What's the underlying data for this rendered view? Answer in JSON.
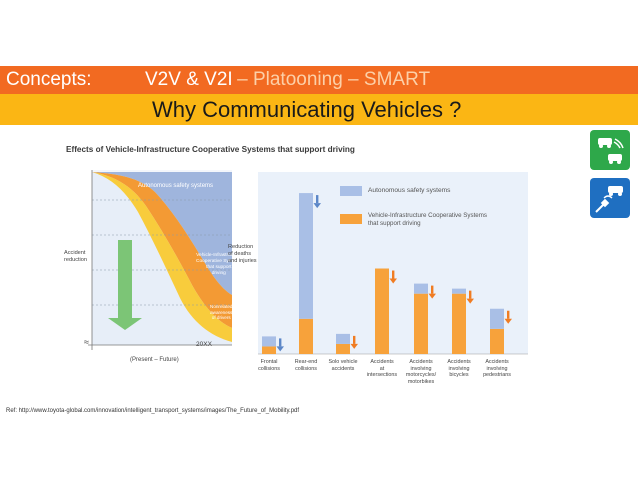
{
  "header": {
    "title_prefix": "Concepts:",
    "title_main": "V2V & V2I",
    "title_rest": "– Platooning – SMART",
    "subtitle": "Why Communicating Vehicles ?"
  },
  "figure": {
    "title": "Effects of Vehicle-Infrastructure Cooperative Systems that support driving",
    "left_chart": {
      "y_label_line1": "Accident",
      "y_label_line2": "reduction",
      "region1": "Autonomous safety systems",
      "region2_l1": "Vehicle-Infrastructure",
      "region2_l2": "Cooperative Systems",
      "region2_l3": "that support",
      "region2_l4": "driving",
      "region3_l1": "Nonrelated",
      "region3_l2": "awareness",
      "region3_l3": "of drivers",
      "time_label": "20XX",
      "x_label": "(Present – Future)",
      "approx_symbol": "≈"
    },
    "right_chart": {
      "y_label_line1": "Reduction",
      "y_label_line2": "of deaths",
      "y_label_line3": "and injuries",
      "legend": [
        {
          "label": "Autonomous safety systems",
          "color": "#a9bfe6"
        },
        {
          "label_l1": "Vehicle-Infrastructure Cooperative Systems",
          "label_l2": "that support driving",
          "color": "#f7a23b"
        }
      ]
    }
  },
  "chart_data": {
    "type": "bar",
    "title": "Effects of Vehicle-Infrastructure Cooperative Systems that support driving",
    "ylabel": "Reduction of deaths and injuries",
    "categories": [
      [
        "Frontal",
        "collisions"
      ],
      [
        "Rear-end",
        "collisions"
      ],
      [
        "Solo vehicle",
        "accidents"
      ],
      [
        "Accidents",
        "at",
        "intersections"
      ],
      [
        "Accidents",
        "involving",
        "motorcycles/",
        "motorbikes"
      ],
      [
        "Accidents",
        "involving",
        "bicycles"
      ],
      [
        "Accidents",
        "involving",
        "pedestrians"
      ]
    ],
    "series": [
      {
        "name": "Autonomous safety systems",
        "values": [
          2,
          25,
          2,
          0,
          2,
          1,
          4
        ]
      },
      {
        "name": "Vehicle-Infrastructure Cooperative Systems that support driving",
        "values": [
          1.5,
          7,
          2,
          17,
          12,
          12,
          5
        ]
      }
    ],
    "stacked": true,
    "ylim": [
      0,
      35
    ]
  },
  "reference": "Ref: http://www.toyota-global.com/innovation/intelligent_transport_systems/images/The_Future_of_Mobility.pdf",
  "icons": {
    "icon1": "v2v-cars-icon",
    "icon2": "v2i-satellite-car-icon",
    "color1": "#2ea84a",
    "color2": "#1f6fc1"
  }
}
